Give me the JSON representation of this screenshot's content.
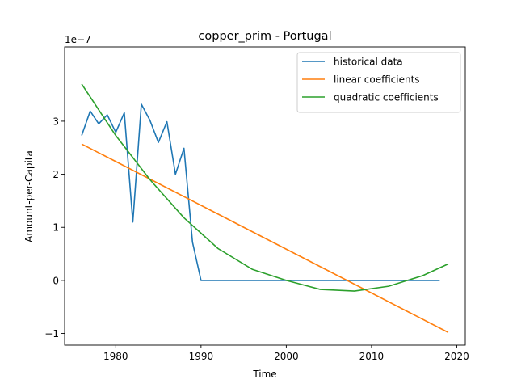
{
  "chart_data": {
    "type": "line",
    "title": "copper_prim - Portugal",
    "xlabel": "Time",
    "ylabel": "Amount-per-Capita",
    "y_scale_label": "1e−7",
    "xlim": [
      1974,
      2021
    ],
    "ylim": [
      -1.22,
      4.4
    ],
    "x_ticks": [
      1980,
      1990,
      2000,
      2010,
      2020
    ],
    "x_tick_labels": [
      "1980",
      "1990",
      "2000",
      "2010",
      "2020"
    ],
    "y_ticks": [
      -1,
      0,
      1,
      2,
      3
    ],
    "y_tick_labels": [
      "−1",
      "0",
      "1",
      "2",
      "3"
    ],
    "grid": false,
    "legend_position": "top-right",
    "series": [
      {
        "name": "historical data",
        "color": "#1f77b4",
        "x": [
          1976,
          1977,
          1978,
          1979,
          1980,
          1981,
          1982,
          1983,
          1984,
          1985,
          1986,
          1987,
          1988,
          1989,
          1990,
          1991,
          1992,
          1993,
          1994,
          1995,
          1996,
          1997,
          1998,
          1999,
          2000,
          2001,
          2002,
          2003,
          2004,
          2005,
          2006,
          2007,
          2008,
          2009,
          2010,
          2011,
          2012,
          2013,
          2014,
          2015,
          2016,
          2017,
          2018
        ],
        "y": [
          2.73,
          3.19,
          2.95,
          3.12,
          2.79,
          3.16,
          1.1,
          3.32,
          3.02,
          2.6,
          2.99,
          2.0,
          2.49,
          0.72,
          0,
          0,
          0,
          0,
          0,
          0,
          0,
          0,
          0,
          0,
          0,
          0,
          0,
          0,
          0,
          0,
          0,
          0,
          0,
          0,
          0,
          0,
          0,
          0,
          0,
          0,
          0,
          0,
          0
        ]
      },
      {
        "name": "linear coefficients",
        "color": "#ff7f0e",
        "x": [
          1976,
          2019
        ],
        "y": [
          2.57,
          -0.98
        ]
      },
      {
        "name": "quadratic coefficients",
        "color": "#2ca02c",
        "x": [
          1976,
          1980,
          1984,
          1988,
          1992,
          1996,
          2000,
          2004,
          2008,
          2012,
          2016,
          2019
        ],
        "y": [
          3.7,
          2.73,
          1.9,
          1.18,
          0.6,
          0.21,
          0.0,
          -0.17,
          -0.2,
          -0.11,
          0.09,
          0.31
        ]
      }
    ]
  }
}
